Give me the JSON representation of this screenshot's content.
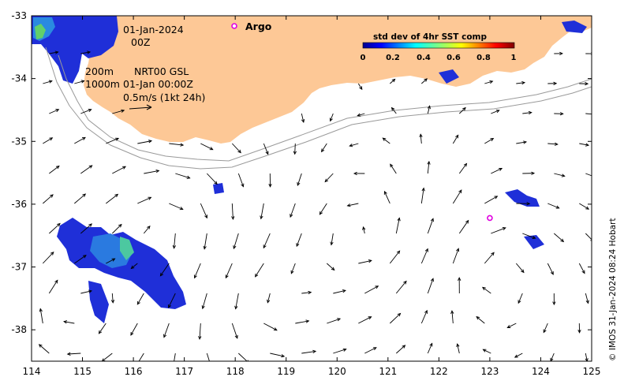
{
  "map": {
    "lon_range": [
      114,
      125
    ],
    "lat_range": [
      -38.5,
      -33
    ],
    "x_ticks": [
      "114",
      "115",
      "116",
      "117",
      "118",
      "119",
      "120",
      "121",
      "122",
      "123",
      "124",
      "125"
    ],
    "y_ticks": [
      "-33",
      "-34",
      "-35",
      "-36",
      "-37",
      "-38"
    ],
    "land_color": "#fdc896",
    "contour_color": "#999999"
  },
  "annotations": {
    "date": "01-Jan-2024",
    "hour": "00Z",
    "contour_200": "200m",
    "product": "NRT00 GSL",
    "contour_1000": "1000m",
    "datetime": "01-Jan 00:00Z",
    "scale": "0.5m/s (1kt 24h)"
  },
  "legend": {
    "argo_label": "Argo",
    "argo_color": "#e000e0"
  },
  "colorbar": {
    "title": "std dev of 4hr SST comp",
    "ticks": [
      "0",
      "0.2",
      "0.4",
      "0.6",
      "0.8",
      "1"
    ]
  },
  "credit": "© IMOS 31-Jan-2024 08:24 Hobart",
  "argo_float": {
    "lon": 123.0,
    "lat": -36.22
  }
}
